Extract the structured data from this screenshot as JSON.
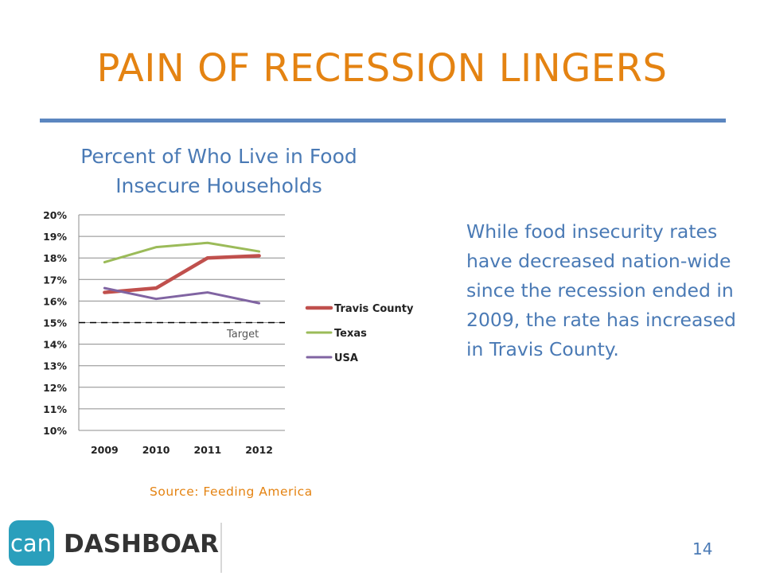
{
  "slide": {
    "title": "PAIN OF RECESSION LINGERS",
    "body": "While food insecurity rates have decreased nation-wide since the recession ended in 2009, the rate has increased in Travis County.",
    "source": "Source:  Feeding America",
    "page_number": "14",
    "logo": {
      "badge": "can",
      "word": "DASHBOARD"
    },
    "colors": {
      "title": "#e48312",
      "accent_rule": "#5b86c0",
      "text": "#4a7ab5",
      "logo_teal": "#2a9fbc"
    }
  },
  "chart_data": {
    "type": "line",
    "title": "Percent of Who Live in Food Insecure Households",
    "categories": [
      "2009",
      "2010",
      "2011",
      "2012"
    ],
    "y_ticks": [
      "10%",
      "11%",
      "12%",
      "13%",
      "14%",
      "15%",
      "16%",
      "17%",
      "18%",
      "19%",
      "20%"
    ],
    "ylim": [
      10,
      20
    ],
    "grid": true,
    "legend_position": "right",
    "series": [
      {
        "name": "Travis County",
        "values": [
          16.4,
          16.6,
          18.0,
          18.1
        ],
        "color": "#c0504d",
        "emphasis": true
      },
      {
        "name": "Texas",
        "values": [
          17.8,
          18.5,
          18.7,
          18.3
        ],
        "color": "#9bbb59"
      },
      {
        "name": "USA",
        "values": [
          16.6,
          16.1,
          16.4,
          15.9
        ],
        "color": "#8064a2"
      }
    ],
    "reference_line": {
      "label": "Target",
      "value": 15,
      "style": "dashed",
      "color": "#000000"
    }
  }
}
